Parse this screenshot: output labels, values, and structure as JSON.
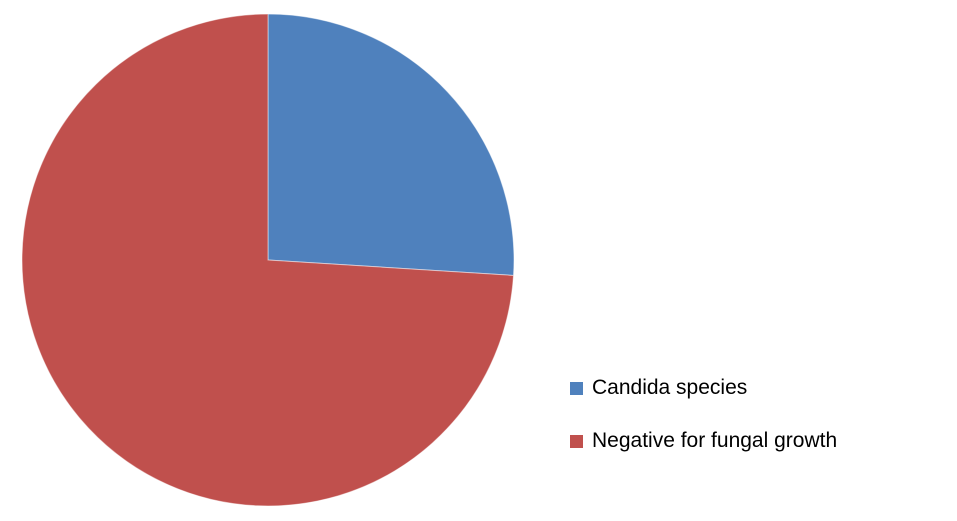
{
  "chart_data": {
    "type": "pie",
    "title": "",
    "labels": [
      "Candida species",
      "Negative for fungal growth"
    ],
    "values": [
      26,
      74
    ],
    "unit": "percent",
    "colors": [
      "#4F81BD",
      "#C0504D"
    ],
    "start_angle_deg": -90,
    "direction": "clockwise",
    "legend_position": "right",
    "background": "#FFFFFF",
    "slice_border_color": "#FFFFFF"
  },
  "legend": {
    "items": [
      {
        "label": "Candida species",
        "color": "#4F81BD"
      },
      {
        "label": "Negative for fungal growth",
        "color": "#C0504D"
      }
    ]
  }
}
